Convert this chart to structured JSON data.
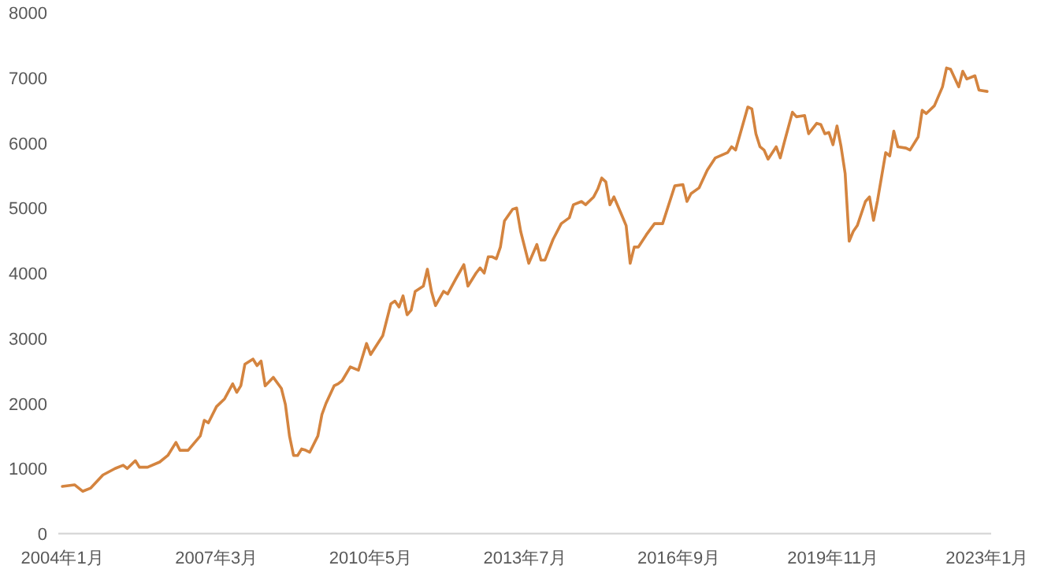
{
  "chart_data": {
    "type": "line",
    "x": [
      "2004-01",
      "2004-04",
      "2004-06",
      "2004-08",
      "2004-11",
      "2005-02",
      "2005-04",
      "2005-05",
      "2005-07",
      "2005-08",
      "2005-10",
      "2006-01",
      "2006-03",
      "2006-05",
      "2006-06",
      "2006-08",
      "2006-11",
      "2006-12",
      "2007-01",
      "2007-03",
      "2007-05",
      "2007-07",
      "2007-08",
      "2007-09",
      "2007-10",
      "2007-12",
      "2008-01",
      "2008-02",
      "2008-03",
      "2008-05",
      "2008-07",
      "2008-08",
      "2008-09",
      "2008-10",
      "2008-11",
      "2008-12",
      "2009-01",
      "2009-02",
      "2009-04",
      "2009-05",
      "2009-06",
      "2009-08",
      "2009-09",
      "2009-10",
      "2009-12",
      "2010-02",
      "2010-04",
      "2010-05",
      "2010-08",
      "2010-10",
      "2010-11",
      "2010-12",
      "2011-01",
      "2011-02",
      "2011-03",
      "2011-04",
      "2011-06",
      "2011-07",
      "2011-08",
      "2011-09",
      "2011-11",
      "2011-12",
      "2012-02",
      "2012-04",
      "2012-05",
      "2012-07",
      "2012-08",
      "2012-09",
      "2012-10",
      "2012-11",
      "2012-12",
      "2013-01",
      "2013-02",
      "2013-04",
      "2013-05",
      "2013-06",
      "2013-08",
      "2013-10",
      "2013-11",
      "2013-12",
      "2014-02",
      "2014-04",
      "2014-06",
      "2014-07",
      "2014-09",
      "2014-10",
      "2014-12",
      "2015-01",
      "2015-02",
      "2015-03",
      "2015-04",
      "2015-05",
      "2015-07",
      "2015-08",
      "2015-09",
      "2015-10",
      "2015-11",
      "2016-01",
      "2016-03",
      "2016-05",
      "2016-08",
      "2016-10",
      "2016-11",
      "2016-12",
      "2017-02",
      "2017-04",
      "2017-06",
      "2017-09",
      "2017-10",
      "2017-11",
      "2018-02",
      "2018-03",
      "2018-04",
      "2018-05",
      "2018-06",
      "2018-07",
      "2018-09",
      "2018-10",
      "2018-11",
      "2019-01",
      "2019-02",
      "2019-04",
      "2019-05",
      "2019-07",
      "2019-08",
      "2019-09",
      "2019-10",
      "2019-11",
      "2019-12",
      "2020-01",
      "2020-02",
      "2020-03",
      "2020-04",
      "2020-05",
      "2020-07",
      "2020-08",
      "2020-09",
      "2020-10",
      "2020-12",
      "2021-01",
      "2021-02",
      "2021-03",
      "2021-05",
      "2021-06",
      "2021-08",
      "2021-09",
      "2021-10",
      "2021-12",
      "2022-02",
      "2022-03",
      "2022-04",
      "2022-06",
      "2022-07",
      "2022-08",
      "2022-10",
      "2022-11",
      "2023-01"
    ],
    "series": [
      {
        "color": "#d4843f",
        "values": [
          725,
          750,
          650,
          700,
          900,
          1000,
          1050,
          1000,
          1120,
          1020,
          1020,
          1100,
          1200,
          1400,
          1280,
          1280,
          1500,
          1740,
          1700,
          1950,
          2070,
          2300,
          2170,
          2270,
          2600,
          2680,
          2580,
          2650,
          2270,
          2400,
          2230,
          1980,
          1500,
          1200,
          1200,
          1300,
          1280,
          1250,
          1500,
          1830,
          2000,
          2270,
          2300,
          2350,
          2560,
          2510,
          2920,
          2750,
          3040,
          3530,
          3570,
          3480,
          3650,
          3360,
          3430,
          3720,
          3800,
          4060,
          3720,
          3500,
          3720,
          3680,
          3910,
          4130,
          3800,
          4000,
          4080,
          4000,
          4250,
          4250,
          4220,
          4400,
          4800,
          4980,
          5000,
          4640,
          4150,
          4440,
          4200,
          4200,
          4520,
          4760,
          4850,
          5050,
          5100,
          5050,
          5170,
          5290,
          5460,
          5400,
          5050,
          5170,
          4880,
          4730,
          4150,
          4400,
          4400,
          4590,
          4760,
          4760,
          5340,
          5360,
          5100,
          5220,
          5310,
          5580,
          5770,
          5850,
          5940,
          5890,
          6550,
          6520,
          6140,
          5940,
          5890,
          5750,
          5940,
          5770,
          6010,
          6470,
          6400,
          6420,
          6140,
          6300,
          6280,
          6140,
          6160,
          5970,
          6260,
          5940,
          5530,
          4490,
          4640,
          4730,
          5100,
          5170,
          4810,
          5120,
          5850,
          5800,
          6180,
          5940,
          5920,
          5890,
          6090,
          6500,
          6450,
          6570,
          6860,
          7150,
          7130,
          6860,
          7100,
          6980,
          7030,
          6810,
          6790
        ]
      }
    ],
    "xlim": [
      "2003-12",
      "2023-02"
    ],
    "ylim": [
      0,
      8000
    ],
    "yticks": [
      0,
      1000,
      2000,
      3000,
      4000,
      5000,
      6000,
      7000,
      8000
    ],
    "xticks": [
      {
        "value": "2004-01",
        "label": "2004年1月"
      },
      {
        "value": "2007-03",
        "label": "2007年3月"
      },
      {
        "value": "2010-05",
        "label": "2010年5月"
      },
      {
        "value": "2013-07",
        "label": "2013年7月"
      },
      {
        "value": "2016-09",
        "label": "2016年9月"
      },
      {
        "value": "2019-11",
        "label": "2019年11月"
      },
      {
        "value": "2023-01",
        "label": "2023年1月"
      }
    ],
    "line_style": "solid"
  }
}
